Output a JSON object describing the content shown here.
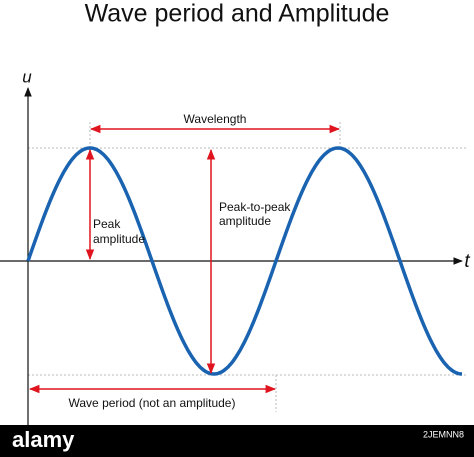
{
  "header": {
    "title": "Wave period and Amplitude"
  },
  "axes": {
    "y_label": "u",
    "x_label": "t"
  },
  "annotations": {
    "wavelength": "Wavelength",
    "peak_amplitude": [
      "Peak",
      "amplitude"
    ],
    "peak_to_peak": [
      "Peak-to-peak",
      "amplitude"
    ],
    "wave_period": "Wave period (not an amplitude)"
  },
  "footer": {
    "brand": "alamy",
    "image_id": "2JEMNN8"
  }
}
